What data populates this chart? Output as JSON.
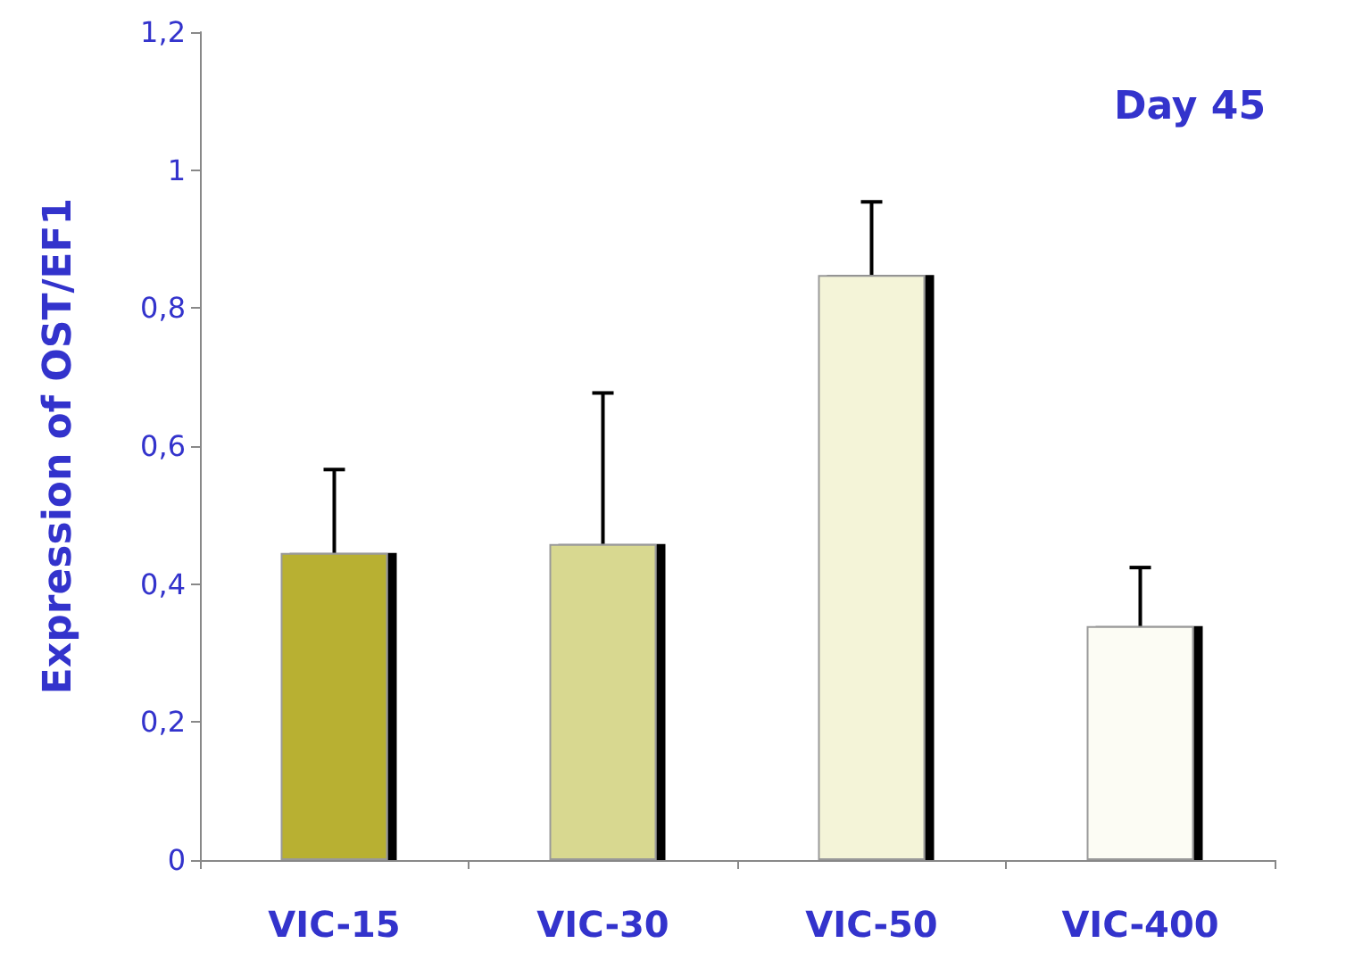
{
  "chart_data": {
    "type": "bar",
    "title": "Day 45",
    "ylabel": "Expression of OST/EF1",
    "categories": [
      "VIC-15",
      "VIC-30",
      "VIC-50",
      "VIC-400"
    ],
    "values": [
      0.445,
      0.458,
      0.848,
      0.339
    ],
    "colors": [
      "#b8b030",
      "#d8d890",
      "#f4f4d8",
      "#fcfcf4"
    ],
    "errors": [
      [
        0.445,
        0.566
      ],
      [
        0.458,
        0.677
      ],
      [
        0.848,
        0.954
      ],
      [
        0.339,
        0.424
      ]
    ],
    "ylim": [
      0,
      1.2
    ],
    "yticks": [
      0,
      {
        "value": 0.2,
        "label": "0,2"
      },
      {
        "value": 0.4,
        "label": "0,4"
      },
      {
        "value": 0.6,
        "label": "0,6"
      },
      {
        "value": 0.8,
        "label": "0,8"
      },
      1,
      {
        "value": 1.2,
        "label": "1,2"
      }
    ],
    "grid": false
  }
}
